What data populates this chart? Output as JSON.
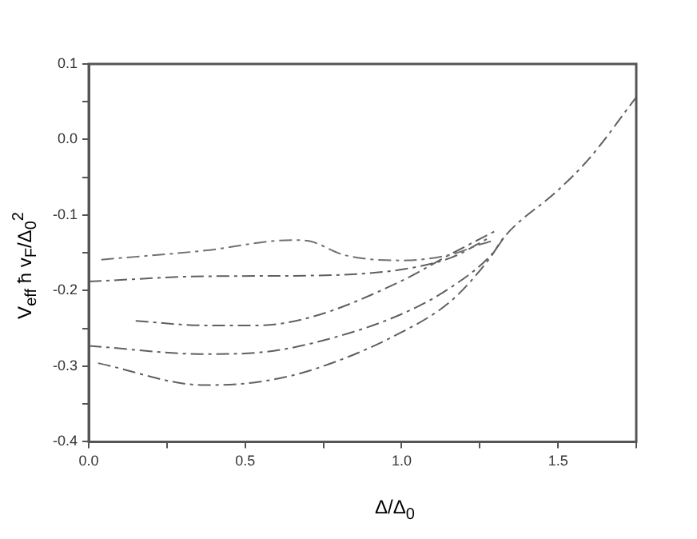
{
  "chart_data": {
    "type": "line",
    "xlabel": "Δ/Δ$_{0}$",
    "ylabel": "V$_{eff}$ ħ v$_{F}$/Δ$_{0}$$^{2}$",
    "xlim": [
      0,
      1.75
    ],
    "ylim": [
      -0.4,
      0.1
    ],
    "xticks": [
      {
        "value": 0,
        "label": "0.0"
      },
      {
        "value": 0.25,
        "label": null
      },
      0.5,
      {
        "value": 0.75,
        "label": null
      },
      {
        "value": 1,
        "label": "1.0"
      },
      {
        "value": 1.25,
        "label": null
      },
      1.5,
      {
        "value": 1.75,
        "label": null
      }
    ],
    "yticks": [
      -0.4,
      {
        "value": -0.35,
        "label": null
      },
      -0.3,
      {
        "value": -0.25,
        "label": null
      },
      -0.2,
      {
        "value": -0.15,
        "label": null
      },
      -0.1,
      {
        "value": -0.05,
        "label": null
      },
      {
        "value": 0,
        "label": "0.0"
      },
      {
        "value": 0.05,
        "label": null
      },
      0.1
    ],
    "grid": false,
    "legend": false,
    "marker": "none",
    "line_style": "dashed",
    "series": [
      {
        "color": "#707070",
        "x": [
          0.04,
          0.37,
          0.65,
          0.7,
          0.81,
          0.89,
          1.0,
          1.16,
          1.25,
          1.3
        ],
        "values": [
          -0.159,
          -0.147,
          -0.133,
          -0.134,
          -0.152,
          -0.158,
          -0.16,
          -0.152,
          -0.139,
          -0.133
        ]
      },
      {
        "color": "#606060",
        "x": [
          0,
          0.37,
          0.72,
          1.0,
          1.16,
          1.28
        ],
        "values": [
          -0.188,
          -0.181,
          -0.18,
          -0.172,
          -0.156,
          -0.13
        ]
      },
      {
        "color": "#606060",
        "x": [
          0.15,
          0.37,
          0.54,
          0.72,
          1.0,
          1.16,
          1.3
        ],
        "values": [
          -0.24,
          -0.246,
          -0.246,
          -0.234,
          -0.187,
          -0.151,
          -0.121
        ]
      },
      {
        "color": "#606060",
        "x": [
          0,
          0.37,
          0.54,
          0.72,
          1.0,
          1.16,
          1.29,
          1.33
        ],
        "values": [
          -0.273,
          -0.284,
          -0.282,
          -0.269,
          -0.231,
          -0.195,
          -0.151,
          -0.128
        ]
      },
      {
        "color": "#606060",
        "x": [
          0.03,
          0.37,
          0.54,
          0.72,
          1.0,
          1.16,
          1.28,
          1.33,
          1.5,
          1.6,
          1.75
        ],
        "values": [
          -0.296,
          -0.325,
          -0.321,
          -0.304,
          -0.255,
          -0.213,
          -0.158,
          -0.128,
          -0.067,
          -0.025,
          0.056
        ]
      }
    ]
  }
}
